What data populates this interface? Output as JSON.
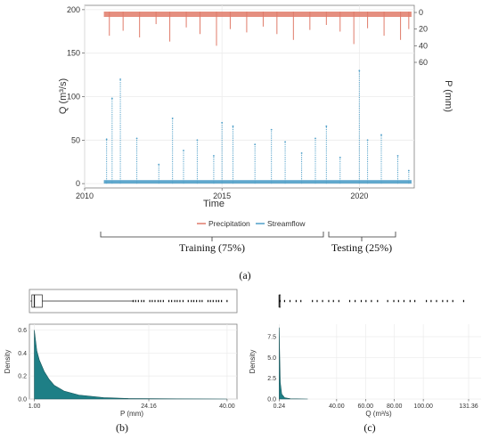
{
  "figure": {
    "panel_a_label": "(a)",
    "panel_b_label": "(b)",
    "panel_c_label": "(c)",
    "period_labels": {
      "training": "Training (75%)",
      "testing": "Testing (25%)"
    }
  },
  "colors": {
    "precipitation": "#e07b6a",
    "streamflow": "#4f9fc8",
    "density_fill": "#1e7f86",
    "grid": "#ebebeb",
    "panel_border": "#7f7f7f"
  },
  "chart_data": [
    {
      "type": "line",
      "panel": "a",
      "title": "",
      "xlabel": "Time",
      "ylabel_left": "Q (m³/s)",
      "ylabel_right": "P (mm)",
      "xlim": [
        2010,
        2022
      ],
      "x_ticks": [
        "2010",
        "2015",
        "2020"
      ],
      "ylim_left": [
        -5,
        205
      ],
      "y_ticks_left": [
        "0",
        "50",
        "100",
        "150",
        "200"
      ],
      "y_ticks_right": [
        "0",
        "20",
        "40",
        "60"
      ],
      "right_axis_inverted": true,
      "grid": true,
      "legend_position": "bottom",
      "series": [
        {
          "name": "Precipitation",
          "axis": "right",
          "style": "bars from top",
          "points": [
            [
              2010.9,
              28
            ],
            [
              2011.4,
              22
            ],
            [
              2012.0,
              30
            ],
            [
              2012.6,
              14
            ],
            [
              2013.1,
              35
            ],
            [
              2013.7,
              18
            ],
            [
              2014.2,
              26
            ],
            [
              2014.8,
              40
            ],
            [
              2015.3,
              20
            ],
            [
              2015.9,
              24
            ],
            [
              2016.5,
              17
            ],
            [
              2017.0,
              26
            ],
            [
              2017.6,
              33
            ],
            [
              2018.2,
              21
            ],
            [
              2018.8,
              15
            ],
            [
              2019.3,
              23
            ],
            [
              2019.8,
              38
            ],
            [
              2020.3,
              19
            ],
            [
              2020.9,
              28
            ],
            [
              2021.5,
              33
            ],
            [
              2021.8,
              20
            ]
          ]
        },
        {
          "name": "Streamflow",
          "axis": "left",
          "style": "points",
          "points": [
            [
              2010.8,
              51
            ],
            [
              2011.0,
              98
            ],
            [
              2011.3,
              120
            ],
            [
              2011.9,
              52
            ],
            [
              2012.7,
              22
            ],
            [
              2013.2,
              75
            ],
            [
              2013.6,
              38
            ],
            [
              2014.1,
              50
            ],
            [
              2014.7,
              32
            ],
            [
              2015.0,
              70
            ],
            [
              2015.4,
              66
            ],
            [
              2016.2,
              45
            ],
            [
              2016.8,
              62
            ],
            [
              2017.3,
              48
            ],
            [
              2017.9,
              35
            ],
            [
              2018.4,
              52
            ],
            [
              2018.8,
              66
            ],
            [
              2019.3,
              30
            ],
            [
              2020.0,
              130
            ],
            [
              2020.3,
              50
            ],
            [
              2020.8,
              56
            ],
            [
              2021.4,
              32
            ],
            [
              2021.8,
              15
            ]
          ]
        }
      ]
    },
    {
      "type": "area",
      "panel": "b",
      "title": "",
      "xlabel": "P (mm)",
      "ylabel": "Density",
      "xlim": [
        0,
        42
      ],
      "ylim": [
        0,
        0.65
      ],
      "x_ticks": [
        "1.00",
        "24.16",
        "40.00"
      ],
      "y_ticks": [
        "0.0",
        "0.2",
        "0.4",
        "0.6"
      ],
      "grid": true,
      "boxplot": {
        "q1": 0.5,
        "median": 1.0,
        "q3": 2.6,
        "whisker_high": 21.0,
        "outliers_to": 40.5
      },
      "density": [
        [
          1.0,
          0.6
        ],
        [
          1.5,
          0.42
        ],
        [
          2.0,
          0.34
        ],
        [
          3.0,
          0.24
        ],
        [
          4.0,
          0.17
        ],
        [
          5.0,
          0.12
        ],
        [
          7.0,
          0.07
        ],
        [
          10.0,
          0.035
        ],
        [
          15.0,
          0.012
        ],
        [
          20.0,
          0.005
        ],
        [
          30.0,
          0.0015
        ],
        [
          40.0,
          0.0
        ]
      ]
    },
    {
      "type": "area",
      "panel": "c",
      "title": "",
      "xlabel": "Q (m³/s)",
      "ylabel": "Density",
      "xlim": [
        0,
        140
      ],
      "ylim": [
        0,
        9
      ],
      "x_ticks": [
        "0.24",
        "40.00",
        "60.00",
        "80.00",
        "100.00",
        "131.36"
      ],
      "y_ticks": [
        "0.0",
        "2.5",
        "5.0",
        "7.5"
      ],
      "grid": true,
      "boxplot": {
        "q1": 0.15,
        "median": 0.24,
        "q3": 0.35,
        "whisker_high": 0.7,
        "outliers_to": 131.36
      },
      "density": [
        [
          0.24,
          8.6
        ],
        [
          0.5,
          6.0
        ],
        [
          1.0,
          2.0
        ],
        [
          2.0,
          0.6
        ],
        [
          4.0,
          0.15
        ],
        [
          8.0,
          0.03
        ],
        [
          20.0,
          0.0
        ]
      ]
    }
  ]
}
